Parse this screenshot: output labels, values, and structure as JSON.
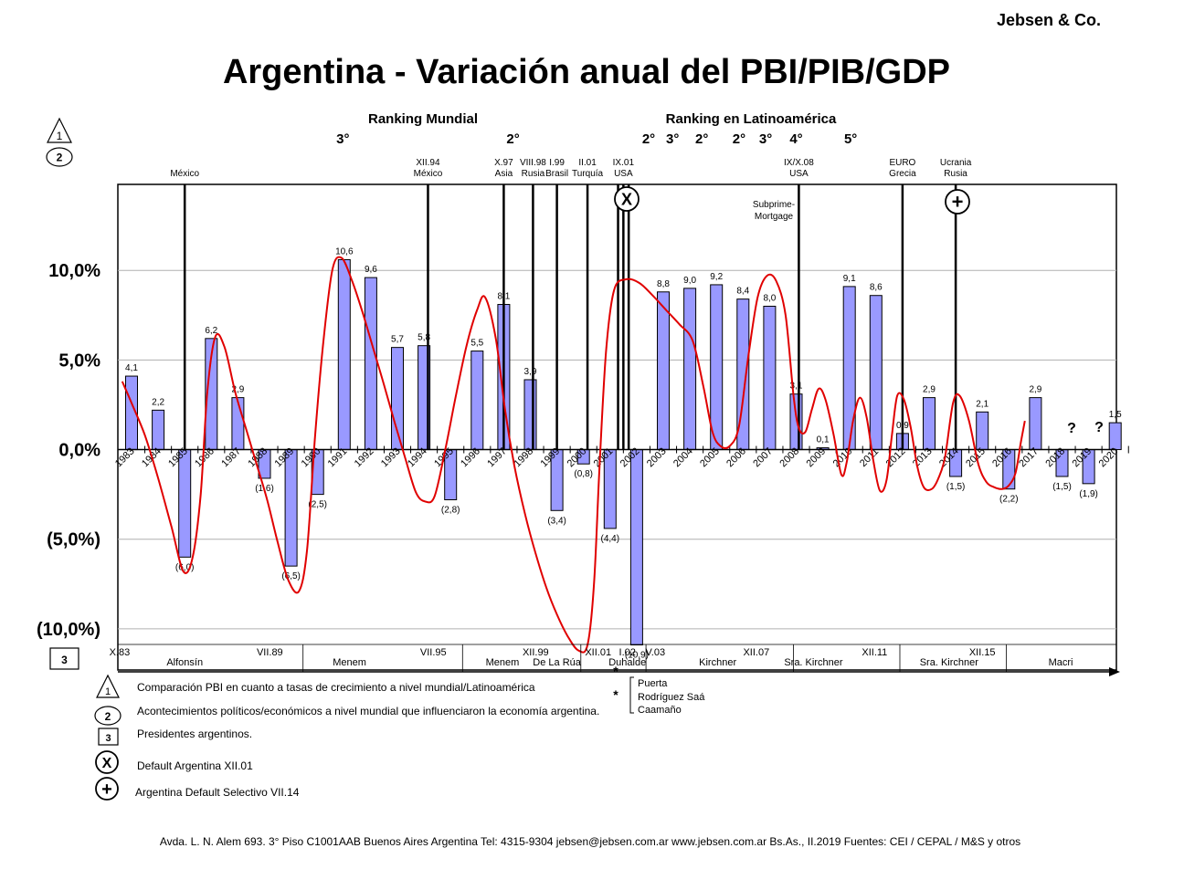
{
  "brand": "Jebsen & Co.",
  "title": "Argentina - Variación anual del PBI/PIB/GDP",
  "ranking": {
    "mundial_title": "Ranking Mundial",
    "latam_title": "Ranking en Latinoamérica",
    "marks": [
      {
        "label": "3°",
        "year": 1990.95
      },
      {
        "label": "2°",
        "year": 1997.35
      },
      {
        "label": "2°",
        "year": 2002.45
      },
      {
        "label": "3°",
        "year": 2003.35
      },
      {
        "label": "2°",
        "year": 2004.45
      },
      {
        "label": "2°",
        "year": 2005.85
      },
      {
        "label": "3°",
        "year": 2006.85
      },
      {
        "label": "4°",
        "year": 2008.0
      },
      {
        "label": "5°",
        "year": 2010.05
      }
    ]
  },
  "badges": {
    "one": "1",
    "two": "2",
    "three": "3"
  },
  "events": [
    {
      "lines": [
        "México"
      ],
      "year": 1985.0
    },
    {
      "lines": [
        "XII.94",
        "México"
      ],
      "year": 1994.15
    },
    {
      "lines": [
        "X.97",
        "Asia"
      ],
      "year": 1997.0
    },
    {
      "lines": [
        "VIII.98",
        "Rusia"
      ],
      "year": 1998.1
    },
    {
      "lines": [
        "I.99",
        "Brasil"
      ],
      "year": 1999.0
    },
    {
      "lines": [
        "II.01",
        "Turquía"
      ],
      "year": 2000.15
    },
    {
      "lines": [
        "IX.01",
        "USA"
      ],
      "year": 2001.5
    },
    {
      "lines": [
        "IX/X.08",
        "USA"
      ],
      "year": 2008.1
    },
    {
      "lines": [
        "EURO",
        "Grecia"
      ],
      "year": 2012.0
    },
    {
      "lines": [
        "Ucrania",
        "Rusia"
      ],
      "year": 2014.0
    }
  ],
  "subprime_lines": [
    "Subprime-",
    "Mortgage"
  ],
  "symbols": {
    "x": "X",
    "plus": "+"
  },
  "chart_data": {
    "type": "bar",
    "x": [
      1983,
      1984,
      1985,
      1986,
      1987,
      1988,
      1989,
      1990,
      1991,
      1992,
      1993,
      1994,
      1995,
      1996,
      1997,
      1998,
      1999,
      2000,
      2001,
      2002,
      2003,
      2004,
      2005,
      2006,
      2007,
      2008,
      2009,
      2010,
      2011,
      2012,
      2013,
      2014,
      2015,
      2016,
      2017,
      2018,
      2019,
      2020
    ],
    "values": [
      4.1,
      2.2,
      -6.0,
      6.2,
      2.9,
      -1.6,
      -6.5,
      -2.5,
      10.6,
      9.6,
      5.7,
      5.8,
      -2.8,
      5.5,
      8.1,
      3.9,
      -3.4,
      -0.8,
      -4.4,
      -10.9,
      8.8,
      9.0,
      9.2,
      8.4,
      8.0,
      3.1,
      0.1,
      9.1,
      8.6,
      0.9,
      2.9,
      -1.5,
      2.1,
      -2.2,
      2.9,
      -1.5,
      -1.9,
      1.5
    ],
    "value_labels": [
      "4,1",
      "2,2",
      "(6,0)",
      "6,2",
      "2,9",
      "(1,6)",
      "(6,5)",
      "(2,5)",
      "10,6",
      "9,6",
      "5,7",
      "5,8",
      "(2,8)",
      "5,5",
      "8,1",
      "3,9",
      "(3,4)",
      "(0,8)",
      "(4,4)",
      "(10,9)",
      "8,8",
      "9,0",
      "9,2",
      "8,4",
      "8,0",
      "3,1",
      "0,1",
      "9,1",
      "8,6",
      "0,9",
      "2,9",
      "(1,5)",
      "2,1",
      "(2,2)",
      "2,9",
      "(1,5)",
      "(1,9)",
      "1,5"
    ],
    "question_marks": [
      "?",
      "?"
    ],
    "ytick_values": [
      10,
      5,
      0,
      -5,
      -10
    ],
    "ytick_labels": [
      "10,0%",
      "5,0%",
      "0,0%",
      "(5,0%)",
      "(10,0%)"
    ],
    "ylim": [
      -12.3,
      14.8
    ],
    "grid": true,
    "bar_color": "#9999ff",
    "trend_color": "#e00000",
    "trend": [
      [
        1982.65,
        3.8
      ],
      [
        1983.0,
        2.6
      ],
      [
        1983.5,
        0.8
      ],
      [
        1984.0,
        -1.6
      ],
      [
        1984.5,
        -4.3
      ],
      [
        1984.95,
        -6.8
      ],
      [
        1985.3,
        -6.0
      ],
      [
        1985.6,
        -2.5
      ],
      [
        1985.85,
        3.2
      ],
      [
        1986.15,
        6.3
      ],
      [
        1986.5,
        5.7
      ],
      [
        1986.9,
        3.2
      ],
      [
        1987.3,
        1.2
      ],
      [
        1987.7,
        -0.8
      ],
      [
        1988.1,
        -2.8
      ],
      [
        1988.5,
        -5.2
      ],
      [
        1988.9,
        -7.3
      ],
      [
        1989.3,
        -7.9
      ],
      [
        1989.6,
        -5.6
      ],
      [
        1989.9,
        0.7
      ],
      [
        1990.2,
        5.8
      ],
      [
        1990.55,
        10.0
      ],
      [
        1990.9,
        10.7
      ],
      [
        1991.3,
        9.4
      ],
      [
        1991.7,
        7.6
      ],
      [
        1992.1,
        5.6
      ],
      [
        1992.5,
        3.6
      ],
      [
        1992.9,
        1.5
      ],
      [
        1993.3,
        -0.5
      ],
      [
        1993.7,
        -2.4
      ],
      [
        1994.05,
        -2.9
      ],
      [
        1994.4,
        -2.6
      ],
      [
        1994.8,
        0.0
      ],
      [
        1995.2,
        3.0
      ],
      [
        1995.6,
        5.8
      ],
      [
        1996.0,
        7.8
      ],
      [
        1996.3,
        8.5
      ],
      [
        1996.7,
        6.2
      ],
      [
        1997.05,
        2.2
      ],
      [
        1997.4,
        -0.9
      ],
      [
        1997.8,
        -3.6
      ],
      [
        1998.2,
        -5.8
      ],
      [
        1998.6,
        -7.7
      ],
      [
        1999.0,
        -9.2
      ],
      [
        1999.4,
        -10.4
      ],
      [
        1999.8,
        -11.2
      ],
      [
        2000.15,
        -10.9
      ],
      [
        2000.4,
        -7.4
      ],
      [
        2000.6,
        -1.0
      ],
      [
        2000.85,
        5.5
      ],
      [
        2001.15,
        8.9
      ],
      [
        2001.6,
        9.5
      ],
      [
        2002.1,
        9.3
      ],
      [
        2002.6,
        8.6
      ],
      [
        2003.1,
        7.8
      ],
      [
        2003.6,
        7.0
      ],
      [
        2004.1,
        6.1
      ],
      [
        2004.5,
        3.6
      ],
      [
        2004.85,
        1.0
      ],
      [
        2005.15,
        0.2
      ],
      [
        2005.5,
        0.2
      ],
      [
        2005.85,
        1.3
      ],
      [
        2006.2,
        5.2
      ],
      [
        2006.55,
        8.5
      ],
      [
        2006.9,
        9.7
      ],
      [
        2007.25,
        9.4
      ],
      [
        2007.6,
        7.5
      ],
      [
        2007.9,
        3.0
      ],
      [
        2008.1,
        1.2
      ],
      [
        2008.35,
        1.0
      ],
      [
        2008.6,
        2.3
      ],
      [
        2008.85,
        3.4
      ],
      [
        2009.1,
        2.8
      ],
      [
        2009.4,
        0.9
      ],
      [
        2009.7,
        -1.4
      ],
      [
        2009.9,
        -0.7
      ],
      [
        2010.15,
        1.7
      ],
      [
        2010.4,
        2.9
      ],
      [
        2010.65,
        1.8
      ],
      [
        2010.9,
        -0.6
      ],
      [
        2011.15,
        -2.3
      ],
      [
        2011.4,
        -1.7
      ],
      [
        2011.6,
        0.8
      ],
      [
        2011.8,
        3.0
      ],
      [
        2012.05,
        2.8
      ],
      [
        2012.3,
        1.3
      ],
      [
        2012.55,
        -0.9
      ],
      [
        2012.8,
        -2.1
      ],
      [
        2013.1,
        -2.2
      ],
      [
        2013.35,
        -1.6
      ],
      [
        2013.6,
        -0.4
      ],
      [
        2013.9,
        2.6
      ],
      [
        2014.15,
        3.0
      ],
      [
        2014.5,
        1.6
      ],
      [
        2014.85,
        -0.8
      ],
      [
        2015.15,
        -1.8
      ],
      [
        2015.45,
        -2.1
      ],
      [
        2015.75,
        -2.2
      ],
      [
        2016.0,
        -2.0
      ],
      [
        2016.25,
        -1.3
      ],
      [
        2016.45,
        0.4
      ],
      [
        2016.6,
        1.6
      ]
    ]
  },
  "period_labels": [
    {
      "text": "X.83",
      "year": 1982.55
    },
    {
      "text": "Alfonsín",
      "year": 1985.0
    },
    {
      "text": "VII.89",
      "year": 1988.2
    },
    {
      "text": "Menem",
      "year": 1991.2
    },
    {
      "text": "VII.95",
      "year": 1994.35
    },
    {
      "text": "Menem",
      "year": 1996.95
    },
    {
      "text": "XII.99",
      "year": 1998.2
    },
    {
      "text": "De La Rúa",
      "year": 1999.0
    },
    {
      "text": "XII.01",
      "year": 2000.55
    },
    {
      "text": "I.02",
      "year": 2001.65
    },
    {
      "text": "Duhalde",
      "year": 2001.65
    },
    {
      "text": "V.03",
      "year": 2002.7
    },
    {
      "text": "Kirchner",
      "year": 2005.05
    },
    {
      "text": "XII.07",
      "year": 2006.5
    },
    {
      "text": "Sra. Kirchner",
      "year": 2008.65
    },
    {
      "text": "XII.11",
      "year": 2010.95
    },
    {
      "text": "Sra. Kirchner",
      "year": 2013.75
    },
    {
      "text": "XII.15",
      "year": 2015.0
    },
    {
      "text": "Macri",
      "year": 2017.95
    }
  ],
  "legend": {
    "item1": "Comparación PBI en cuanto a tasas de crecimiento a nivel mundial/Latinoamérica",
    "item2": "Acontecimientos políticos/económicos a nivel mundial que influenciaron la economía argentina.",
    "item3": "Presidentes argentinos.",
    "item4": "Default Argentina XII.01",
    "item5": "Argentina Default Selectivo VII.14"
  },
  "footnote": {
    "marker": "*",
    "names": [
      "Puerta",
      "Rodríguez Saá",
      "Caamaño"
    ]
  },
  "footer": "Avda. L. N. Alem 693. 3° Piso  C1001AAB Buenos Aires  Argentina  Tel: 4315-9304  jebsen@jebsen.com.ar  www.jebsen.com.ar   Bs.As., II.2019  Fuentes: CEI / CEPAL / M&S y otros"
}
